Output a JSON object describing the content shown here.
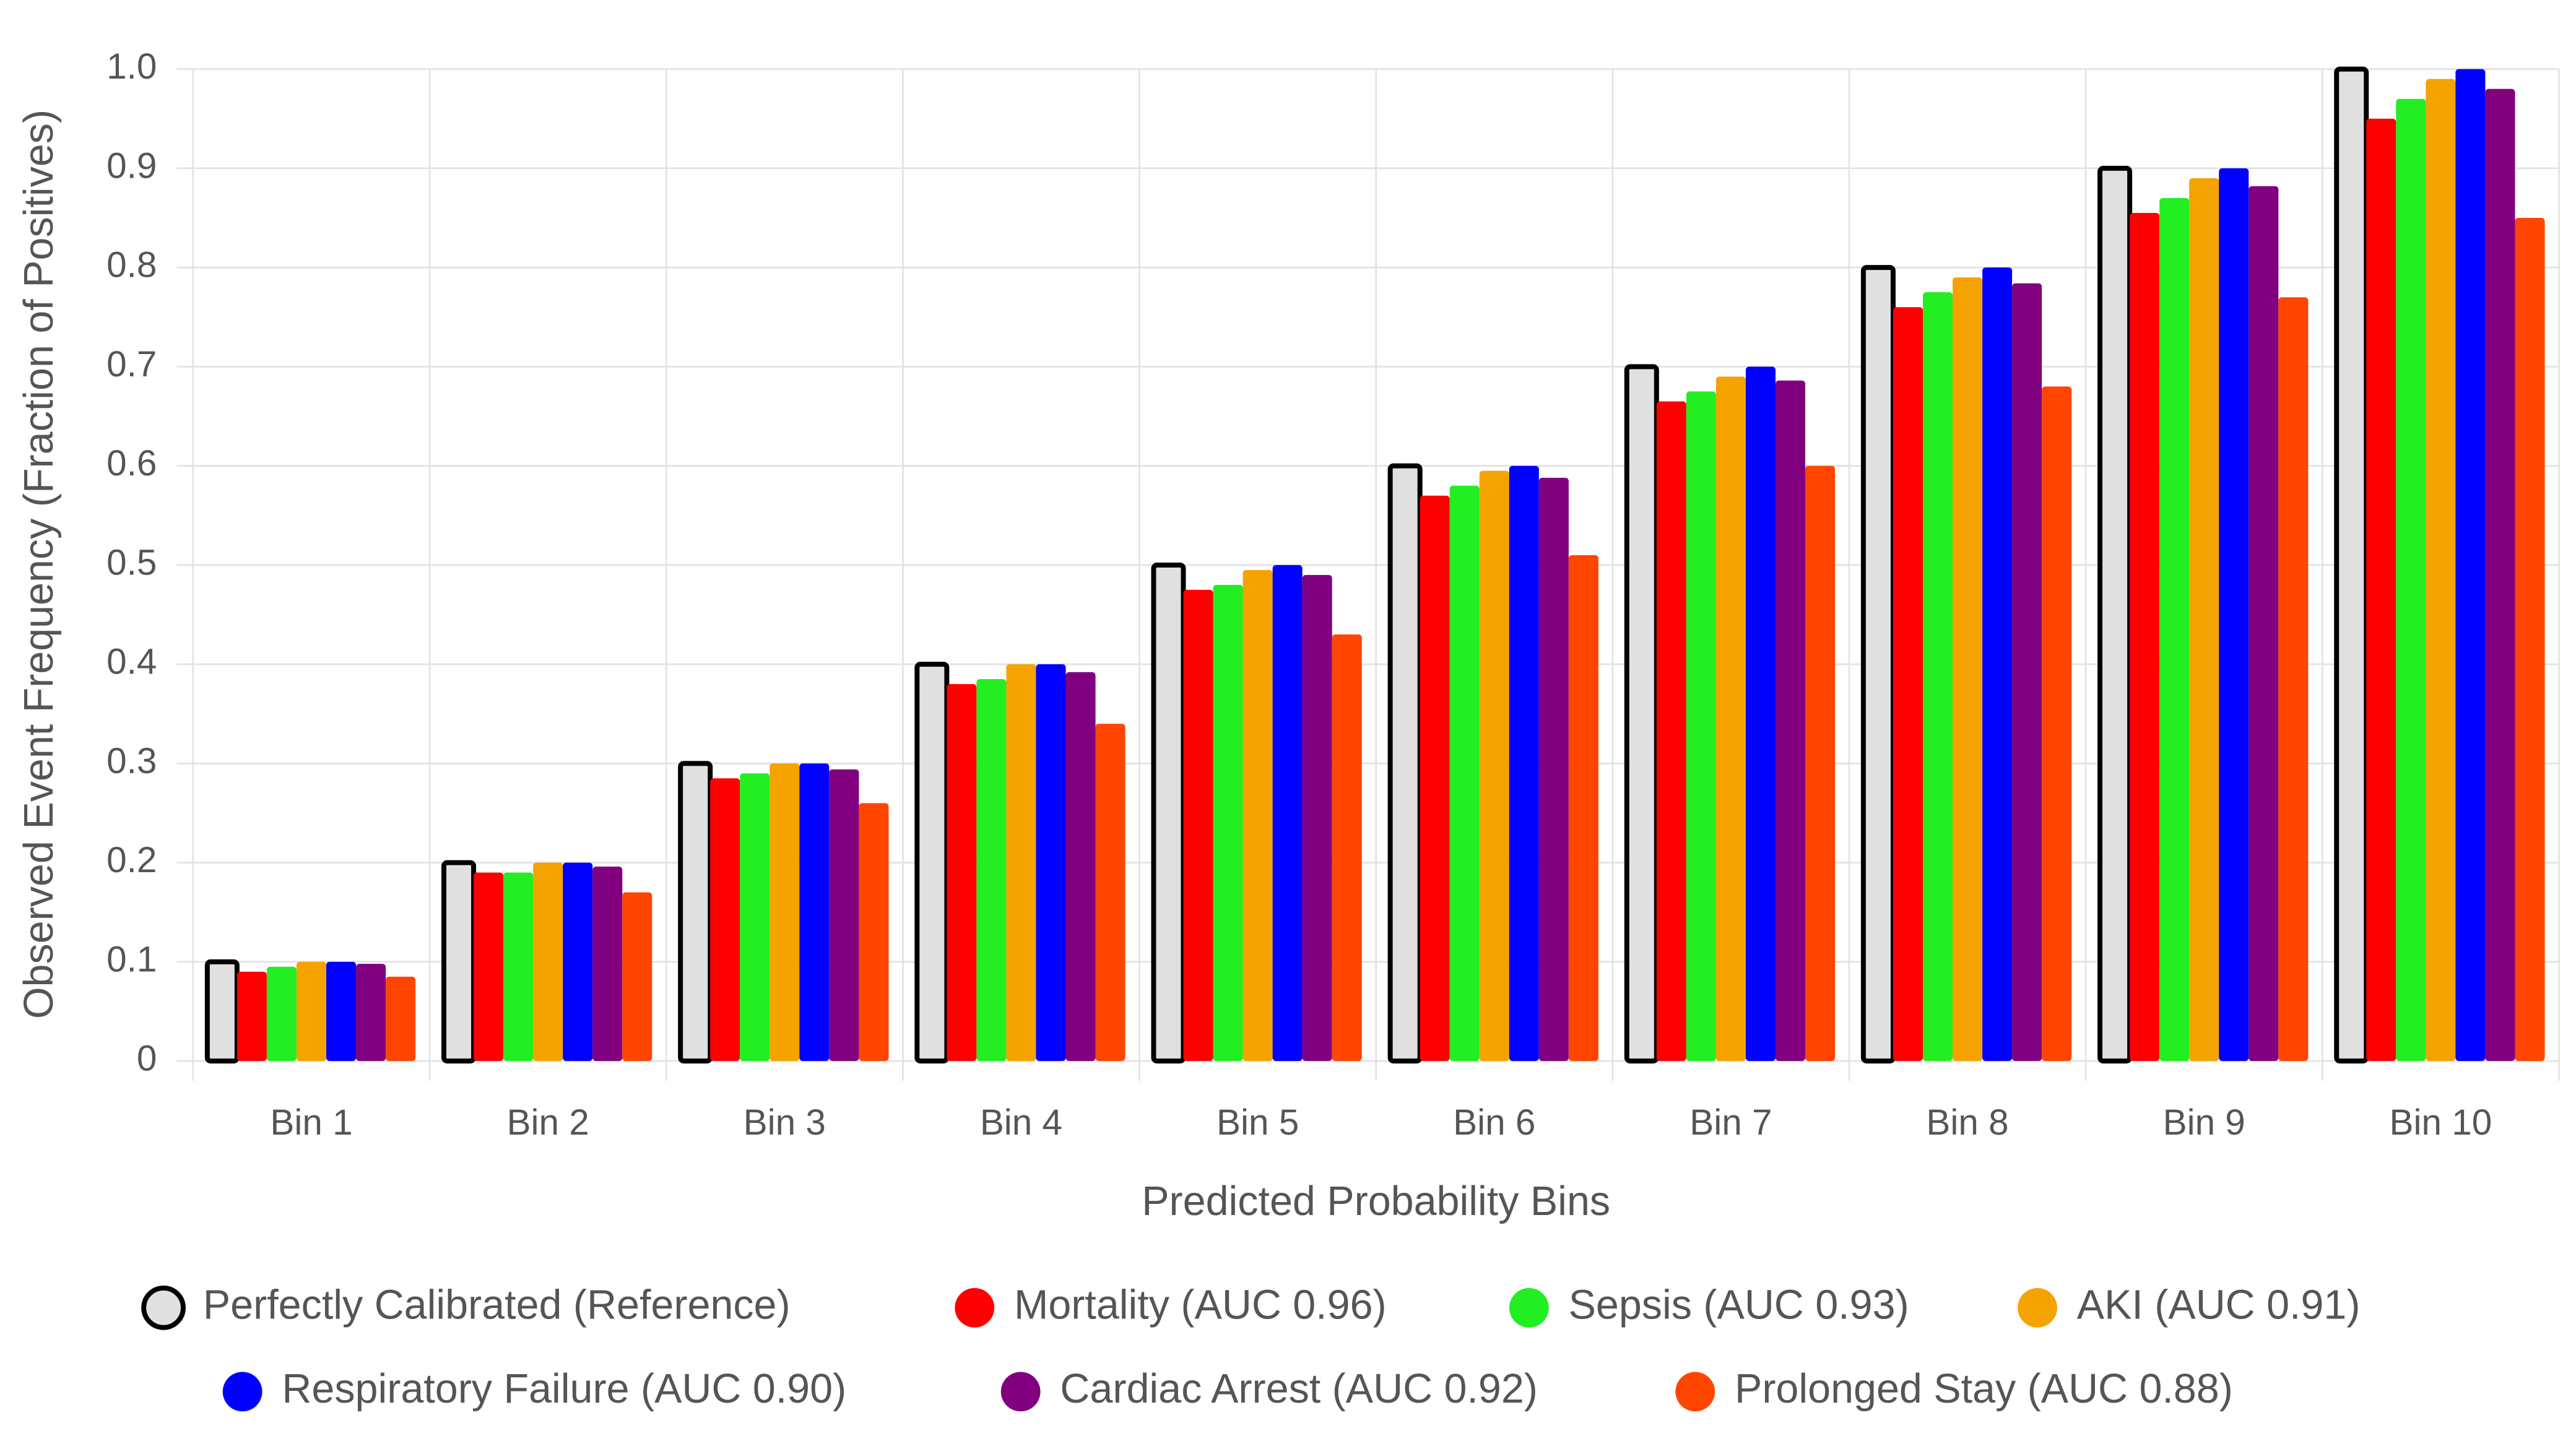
{
  "chart_data": {
    "type": "bar",
    "x_label": "Predicted Probability Bins",
    "y_label": "Observed Event Frequency (Fraction of Positives)",
    "categories": [
      "Bin 1",
      "Bin 2",
      "Bin 3",
      "Bin 4",
      "Bin 5",
      "Bin 6",
      "Bin 7",
      "Bin 8",
      "Bin 9",
      "Bin 10"
    ],
    "series": [
      {
        "name": "Perfectly Calibrated (Reference)",
        "color": "#e0e0e0",
        "border_color": "#000000",
        "values": [
          0.1,
          0.2,
          0.3,
          0.4,
          0.5,
          0.6,
          0.7,
          0.8,
          0.9,
          1
        ]
      },
      {
        "name": "Mortality (AUC 0.96)",
        "color": "#ff0000",
        "values": [
          0.09,
          0.19,
          0.285,
          0.38,
          0.475,
          0.57,
          0.665,
          0.76,
          0.855,
          0.95
        ]
      },
      {
        "name": "Sepsis (AUC 0.93)",
        "color": "#22ee22",
        "values": [
          0.095,
          0.19,
          0.29,
          0.385,
          0.48,
          0.58,
          0.675,
          0.775,
          0.87,
          0.97
        ]
      },
      {
        "name": "AKI (AUC 0.91)",
        "color": "#f5a300",
        "values": [
          0.1,
          0.2,
          0.3,
          0.4,
          0.495,
          0.595,
          0.69,
          0.79,
          0.89,
          0.99
        ]
      },
      {
        "name": "Respiratory Failure (AUC 0.90)",
        "color": "#0000ff",
        "values": [
          0.1,
          0.2,
          0.3,
          0.4,
          0.5,
          0.6,
          0.7,
          0.8,
          0.9,
          1
        ]
      },
      {
        "name": "Cardiac Arrest (AUC 0.92)",
        "color": "#800080",
        "values": [
          0.098,
          0.196,
          0.294,
          0.392,
          0.49,
          0.588,
          0.686,
          0.784,
          0.882,
          0.98
        ]
      },
      {
        "name": "Prolonged Stay (AUC 0.88)",
        "color": "#ff4500",
        "values": [
          0.085,
          0.17,
          0.26,
          0.34,
          0.43,
          0.51,
          0.6,
          0.68,
          0.77,
          0.85
        ]
      }
    ],
    "ylim": [
      0,
      1
    ],
    "yticks": [
      0,
      0.1,
      0.2,
      0.3,
      0.4,
      0.5,
      0.6,
      0.7,
      0.8,
      0.9,
      {
        "value": 1,
        "label": "1.0"
      }
    ],
    "grid": true,
    "legend": "bottom"
  }
}
